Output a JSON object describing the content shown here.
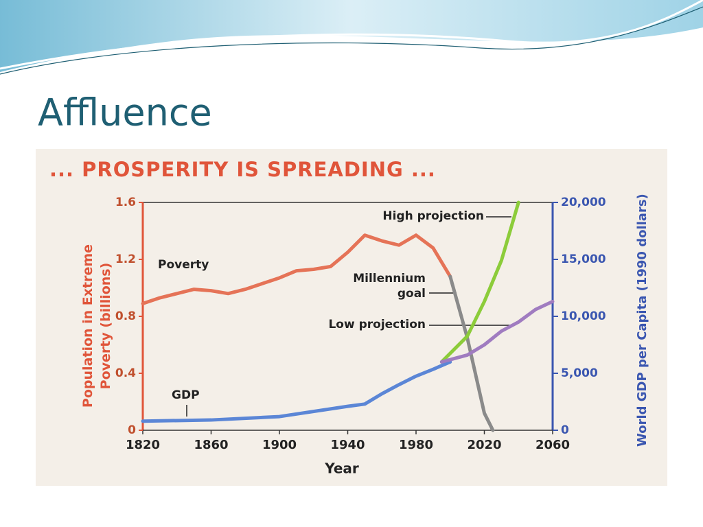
{
  "slide": {
    "title": "Affluence"
  },
  "chart_data": {
    "type": "line",
    "title": "... PROSPERITY IS SPREADING ...",
    "xlabel": "Year",
    "ylabel": "Population in Extreme Poverty (billions)",
    "y2label": "World GDP per Capita (1990 dollars)",
    "xlim": [
      1820,
      2060
    ],
    "xticks": [
      1820,
      1860,
      1900,
      1940,
      1980,
      2020,
      2060
    ],
    "ylim": [
      0,
      1.6
    ],
    "yticks": [
      0,
      0.4,
      0.8,
      1.2,
      1.6
    ],
    "y2lim": [
      0,
      20000
    ],
    "y2ticks": [
      0,
      {
        "value": 5000,
        "label": "5,000"
      },
      {
        "value": 10000,
        "label": "10,000"
      },
      {
        "value": 15000,
        "label": "15,000"
      },
      {
        "value": 20000,
        "label": "20,000"
      }
    ],
    "series": [
      {
        "name": "Poverty",
        "color": "#e57357",
        "x": [
          1820,
          1830,
          1840,
          1850,
          1860,
          1870,
          1880,
          1890,
          1900,
          1910,
          1920,
          1930,
          1940,
          1950,
          1960,
          1970,
          1980,
          1990,
          2000
        ],
        "values": [
          0.89,
          0.93,
          0.96,
          0.99,
          0.98,
          0.96,
          0.99,
          1.03,
          1.07,
          1.12,
          1.13,
          1.15,
          1.25,
          1.37,
          1.33,
          1.3,
          1.37,
          1.28,
          1.08
        ]
      },
      {
        "name": "Millennium goal",
        "color": "#8a8a8a",
        "x": [
          2000,
          2010,
          2020,
          2025
        ],
        "values": [
          1.08,
          0.65,
          0.12,
          0
        ]
      },
      {
        "name": "GDP",
        "color": "#5b86d6",
        "axis": "y2",
        "x": [
          1820,
          1860,
          1900,
          1940,
          1950,
          1960,
          1970,
          1980,
          1990,
          2000
        ],
        "values": [
          800,
          900,
          1200,
          2100,
          2300,
          3200,
          4000,
          4750,
          5350,
          6000
        ]
      },
      {
        "name": "High projection",
        "color": "#8ccc3a",
        "axis": "y2",
        "x": [
          1995,
          2010,
          2020,
          2030,
          2040
        ],
        "values": [
          6000,
          8250,
          11300,
          14900,
          20000
        ]
      },
      {
        "name": "Low projection",
        "color": "#a07cc0",
        "axis": "y2",
        "x": [
          1995,
          2010,
          2020,
          2030,
          2040,
          2050,
          2060
        ],
        "values": [
          6000,
          6600,
          7500,
          8700,
          9500,
          10600,
          11300
        ]
      }
    ]
  }
}
